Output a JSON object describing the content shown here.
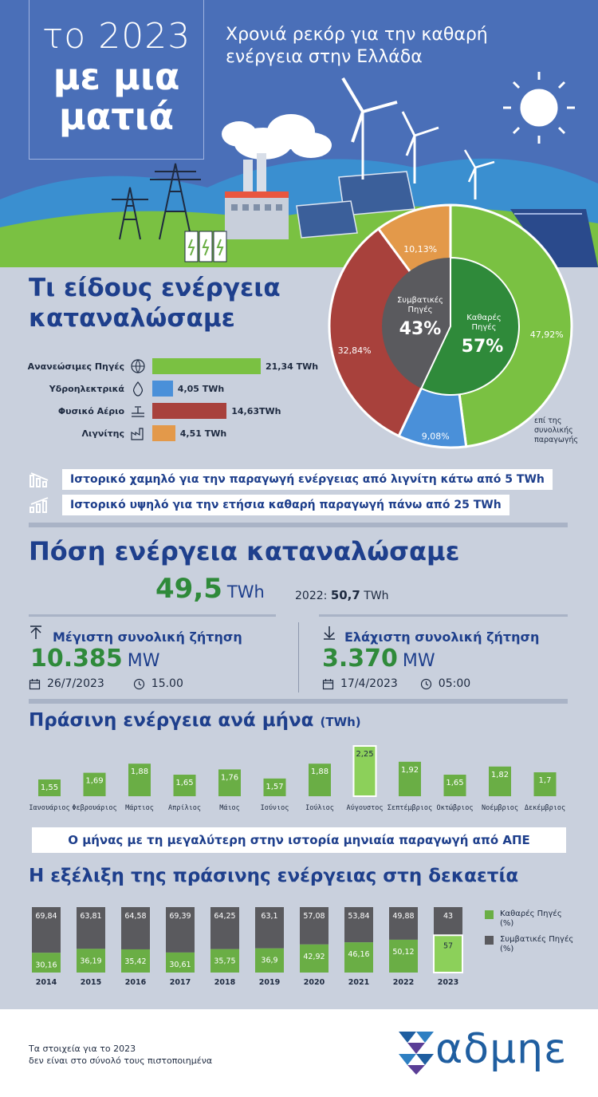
{
  "hero": {
    "title_year": "το 2023",
    "title_line1": "με μια",
    "title_line2": "ματιά",
    "subtitle_line1": "Χρονιά ρεκόρ για την καθαρή",
    "subtitle_line2": "ενέργεια στην Ελλάδα"
  },
  "consumption_types": {
    "title_line1": "Τι είδους ενέργεια",
    "title_line2": "καταναλώσαμε",
    "rows": [
      {
        "label": "Ανανεώσιμες Πηγές",
        "value_label": "21,34 TWh",
        "value": 21.34,
        "color": "#7ac142",
        "icon": "globe-leaf-icon"
      },
      {
        "label": "Υδροηλεκτρικά",
        "value_label": "4,05 TWh",
        "value": 4.05,
        "color": "#4a90d9",
        "icon": "water-drop-icon"
      },
      {
        "label": "Φυσικό Αέριο",
        "value_label": "14,63TWh",
        "value": 14.63,
        "color": "#a8413c",
        "icon": "gas-valve-icon"
      },
      {
        "label": "Λιγνίτης",
        "value_label": "4,51 TWh",
        "value": 4.51,
        "color": "#e3994a",
        "icon": "factory-icon"
      }
    ]
  },
  "share_pie": {
    "conventional_label_1": "Συμβατικές",
    "conventional_label_2": "Πηγές",
    "conventional_pct": "43%",
    "clean_label_1": "Καθαρές",
    "clean_label_2": "Πηγές",
    "clean_pct": "57%",
    "slices": [
      {
        "label": "47,92%",
        "value": 47.92,
        "color": "#7ac142"
      },
      {
        "label": "9,08%",
        "value": 9.08,
        "color": "#4a90d9"
      },
      {
        "label": "32,84%",
        "value": 32.84,
        "color": "#a8413c"
      },
      {
        "label": "10,13%",
        "value": 10.13,
        "color": "#e3994a"
      }
    ],
    "note_1": "επί της",
    "note_2": "συνολικής",
    "note_3": "παραγωγής"
  },
  "records": [
    {
      "text": "Ιστορικό χαμηλό για την παραγωγή ενέργειας από λιγνίτη κάτω από 5 TWh",
      "icon": "chart-down-icon"
    },
    {
      "text": "Ιστορικό υψηλό για την ετήσια καθαρή παραγωγή πάνω από 25 TWh",
      "icon": "chart-up-icon"
    }
  ],
  "consumption": {
    "title": "Πόση ενέργεια καταναλώσαμε",
    "total_value": "49,5",
    "total_unit": "TWh",
    "prev_label": "2022:",
    "prev_value": "50,7",
    "prev_unit": "TWh",
    "max": {
      "label": "Μέγιστη συνολική ζήτηση",
      "value": "10.385",
      "unit": "MW",
      "date": "26/7/2023",
      "time": "15.00"
    },
    "min": {
      "label": "Ελάχιστη συνολική ζήτηση",
      "value": "3.370",
      "unit": "MW",
      "date": "17/4/2023",
      "time": "05:00"
    }
  },
  "monthly": {
    "title": "Πράσινη ενέργεια ανά μήνα",
    "title_unit": "(TWh)",
    "banner": "Ο μήνας με τη μεγαλύτερη στην ιστορία μηνιαία παραγωγή από ΑΠΕ"
  },
  "decade": {
    "title": "Η εξέλιξη της πράσινης ενέργειας στη δεκαετία",
    "legend_clean_1": "Καθαρές Πηγές",
    "legend_clean_2": "(%)",
    "legend_conv_1": "Συμβατικές Πηγές",
    "legend_conv_2": "(%)"
  },
  "footer": {
    "note_1": "Τα στοιχεία για το 2023",
    "note_2": "δεν είναι στο σύνολό τους πιστοποιημένα",
    "logo": "αδμηε"
  },
  "colors": {
    "green": "#6aae45",
    "green_light": "#8cd05a",
    "gray": "#5a5a5e",
    "navy": "#1e3f8c"
  },
  "chart_data": [
    {
      "type": "bar",
      "title": "Πράσινη ενέργεια ανά μήνα (TWh)",
      "categories": [
        "Ιανουάριος",
        "Φεβρουάριος",
        "Μάρτιος",
        "Απρίλιος",
        "Μάιος",
        "Ιούνιος",
        "Ιούλιος",
        "Αύγουστος",
        "Σεπτέμβριος",
        "Οκτώβριος",
        "Νοέμβριος",
        "Δεκέμβριος"
      ],
      "values": [
        1.55,
        1.69,
        1.88,
        1.65,
        1.76,
        1.57,
        1.88,
        2.25,
        1.92,
        1.65,
        1.82,
        1.7
      ],
      "value_labels": [
        "1,55",
        "1,69",
        "1,88",
        "1,65",
        "1,76",
        "1,57",
        "1,88",
        "2,25",
        "1,92",
        "1,65",
        "1,82",
        "1,7"
      ],
      "highlight_index": 7
    },
    {
      "type": "bar",
      "stacked": true,
      "title": "Η εξέλιξη της πράσινης ενέργειας στη δεκαετία",
      "categories": [
        "2014",
        "2015",
        "2016",
        "2017",
        "2018",
        "2019",
        "2020",
        "2021",
        "2022",
        "2023"
      ],
      "series": [
        {
          "name": "Καθαρές Πηγές (%)",
          "values": [
            30.16,
            36.19,
            35.42,
            30.61,
            35.75,
            36.9,
            42.92,
            46.16,
            50.12,
            57
          ],
          "labels": [
            "30,16",
            "36,19",
            "35,42",
            "30,61",
            "35,75",
            "36,9",
            "42,92",
            "46,16",
            "50,12",
            "57"
          ]
        },
        {
          "name": "Συμβατικές Πηγές (%)",
          "values": [
            69.84,
            63.81,
            64.58,
            69.39,
            64.25,
            63.1,
            57.08,
            53.84,
            49.88,
            43
          ],
          "labels": [
            "69,84",
            "63,81",
            "64,58",
            "69,39",
            "64,25",
            "63,1",
            "57,08",
            "53,84",
            "49,88",
            "43"
          ]
        }
      ],
      "ylim": [
        0,
        100
      ]
    }
  ]
}
